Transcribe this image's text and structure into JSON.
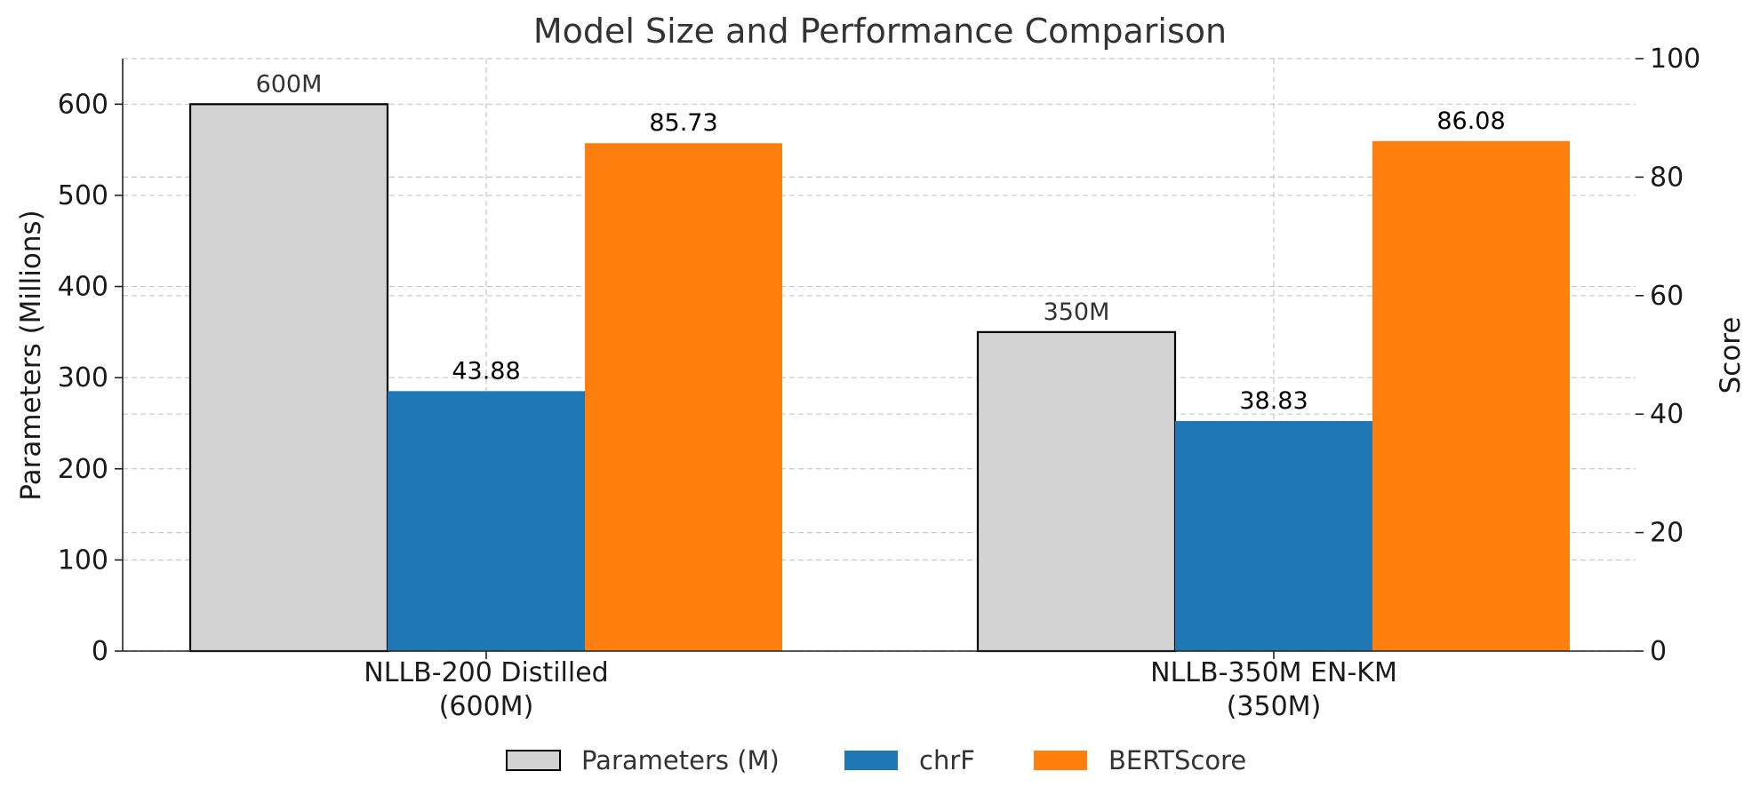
{
  "chart_data": {
    "type": "bar",
    "title": "Model Size and Performance Comparison",
    "categories": [
      "NLLB-200 Distilled\n(600M)",
      "NLLB-350M EN-KM\n(350M)"
    ],
    "y_left": {
      "label": "Parameters (Millions)",
      "lim": [
        0,
        650
      ],
      "ticks": [
        0,
        100,
        200,
        300,
        400,
        500,
        600
      ]
    },
    "y_right": {
      "label": "Score",
      "lim": [
        0,
        100
      ],
      "ticks": [
        0,
        20,
        40,
        60,
        80,
        100
      ]
    },
    "grid": true,
    "legend": "bottom-center",
    "series": [
      {
        "name": "Parameters (M)",
        "axis": "left",
        "values": [
          600,
          350
        ],
        "labels": [
          "600M",
          "350M"
        ],
        "color": "#d3d3d3",
        "edge": "#000000",
        "label_color": "#333333"
      },
      {
        "name": "chrF",
        "axis": "right",
        "values": [
          43.88,
          38.83
        ],
        "labels": [
          "43.88",
          "38.83"
        ],
        "color": "#1f77b4",
        "label_color": "#000000"
      },
      {
        "name": "BERTScore",
        "axis": "right",
        "values": [
          85.73,
          86.08
        ],
        "labels": [
          "85.73",
          "86.08"
        ],
        "color": "#ff7f0e",
        "label_color": "#000000"
      }
    ]
  }
}
